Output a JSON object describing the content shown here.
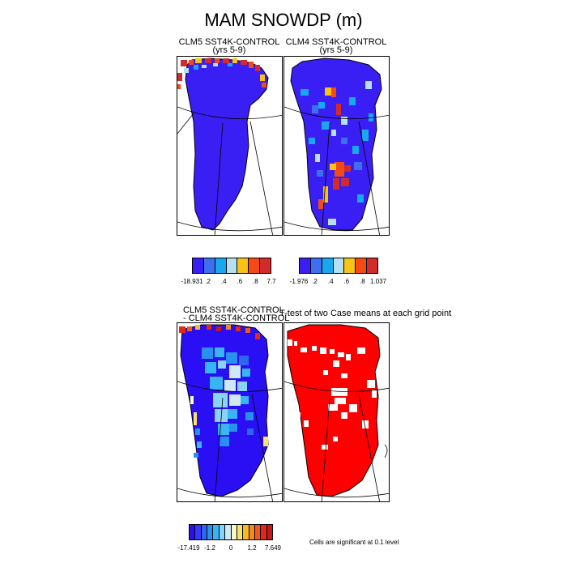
{
  "figure": {
    "title": "MAM SNOWDP (m)"
  },
  "panels": {
    "p1": {
      "title_line1": "CLM5 SST4K-CONTROL",
      "title_line2": "(yrs 5-9)"
    },
    "p2": {
      "title_line1": "CLM4 SST4K-CONTROL",
      "title_line2": "(yrs 5-9)"
    },
    "p3": {
      "title_line1": "CLM5 SST4K-CONTROL",
      "title_line2": "- CLM4 SST4K-CONTROL"
    },
    "p4": {
      "title_line1": "T-test of two Case means at each grid point"
    }
  },
  "legends": {
    "l1": {
      "colors": [
        "#3a1ff5",
        "#3d6ff0",
        "#19a8f0",
        "#b5e0f0",
        "#f7c314",
        "#f44a16",
        "#d22b2b"
      ],
      "labels": [
        "-18.931",
        ".2",
        ".4",
        ".6",
        ".8",
        "7.7"
      ]
    },
    "l2": {
      "colors": [
        "#3a1ff5",
        "#3d6ff0",
        "#19a8f0",
        "#b5e0f0",
        "#f7c314",
        "#f44a16",
        "#d22b2b"
      ],
      "labels": [
        "-1.976",
        ".2",
        ".4",
        ".6",
        ".8",
        "1.037"
      ]
    },
    "l3": {
      "colors": [
        "#2a0ff5",
        "#3838f5",
        "#2e66f0",
        "#2a90f0",
        "#39b4f5",
        "#89d4f5",
        "#cde9f5",
        "#f7f7c8",
        "#f7e36c",
        "#f7b82a",
        "#f48a1c",
        "#f05a18",
        "#e02a12",
        "#c01a1a"
      ],
      "labels": [
        "-17.419",
        "-1.2",
        "0",
        "1.2",
        "7.649"
      ]
    }
  },
  "significance_note": "Cells are significant at 0.1 level",
  "chart_data": [
    {
      "type": "heatmap",
      "title": "CLM5 SST4K-CONTROL (yrs 5-9)",
      "field": "SNOWDP",
      "units": "m",
      "season": "MAM",
      "color_levels": [
        ".2",
        ".4",
        ".6",
        ".8"
      ],
      "color_min": -18.931,
      "color_max": 7.7,
      "dominant_category": "below .2"
    },
    {
      "type": "heatmap",
      "title": "CLM4 SST4K-CONTROL (yrs 5-9)",
      "field": "SNOWDP",
      "units": "m",
      "season": "MAM",
      "color_levels": [
        ".2",
        ".4",
        ".6",
        ".8"
      ],
      "color_min": -1.976,
      "color_max": 1.037,
      "dominant_category": "below .2"
    },
    {
      "type": "heatmap",
      "title": "CLM5 SST4K-CONTROL - CLM4 SST4K-CONTROL",
      "field": "SNOWDP",
      "units": "m",
      "season": "MAM",
      "color_levels": [
        "-1.2",
        "0",
        "1.2"
      ],
      "color_min": -17.419,
      "color_max": 7.649
    },
    {
      "type": "heatmap",
      "title": "T-test of two Case means at each grid point",
      "significance_level": 0.1,
      "significant_color": "#ff0000"
    }
  ]
}
